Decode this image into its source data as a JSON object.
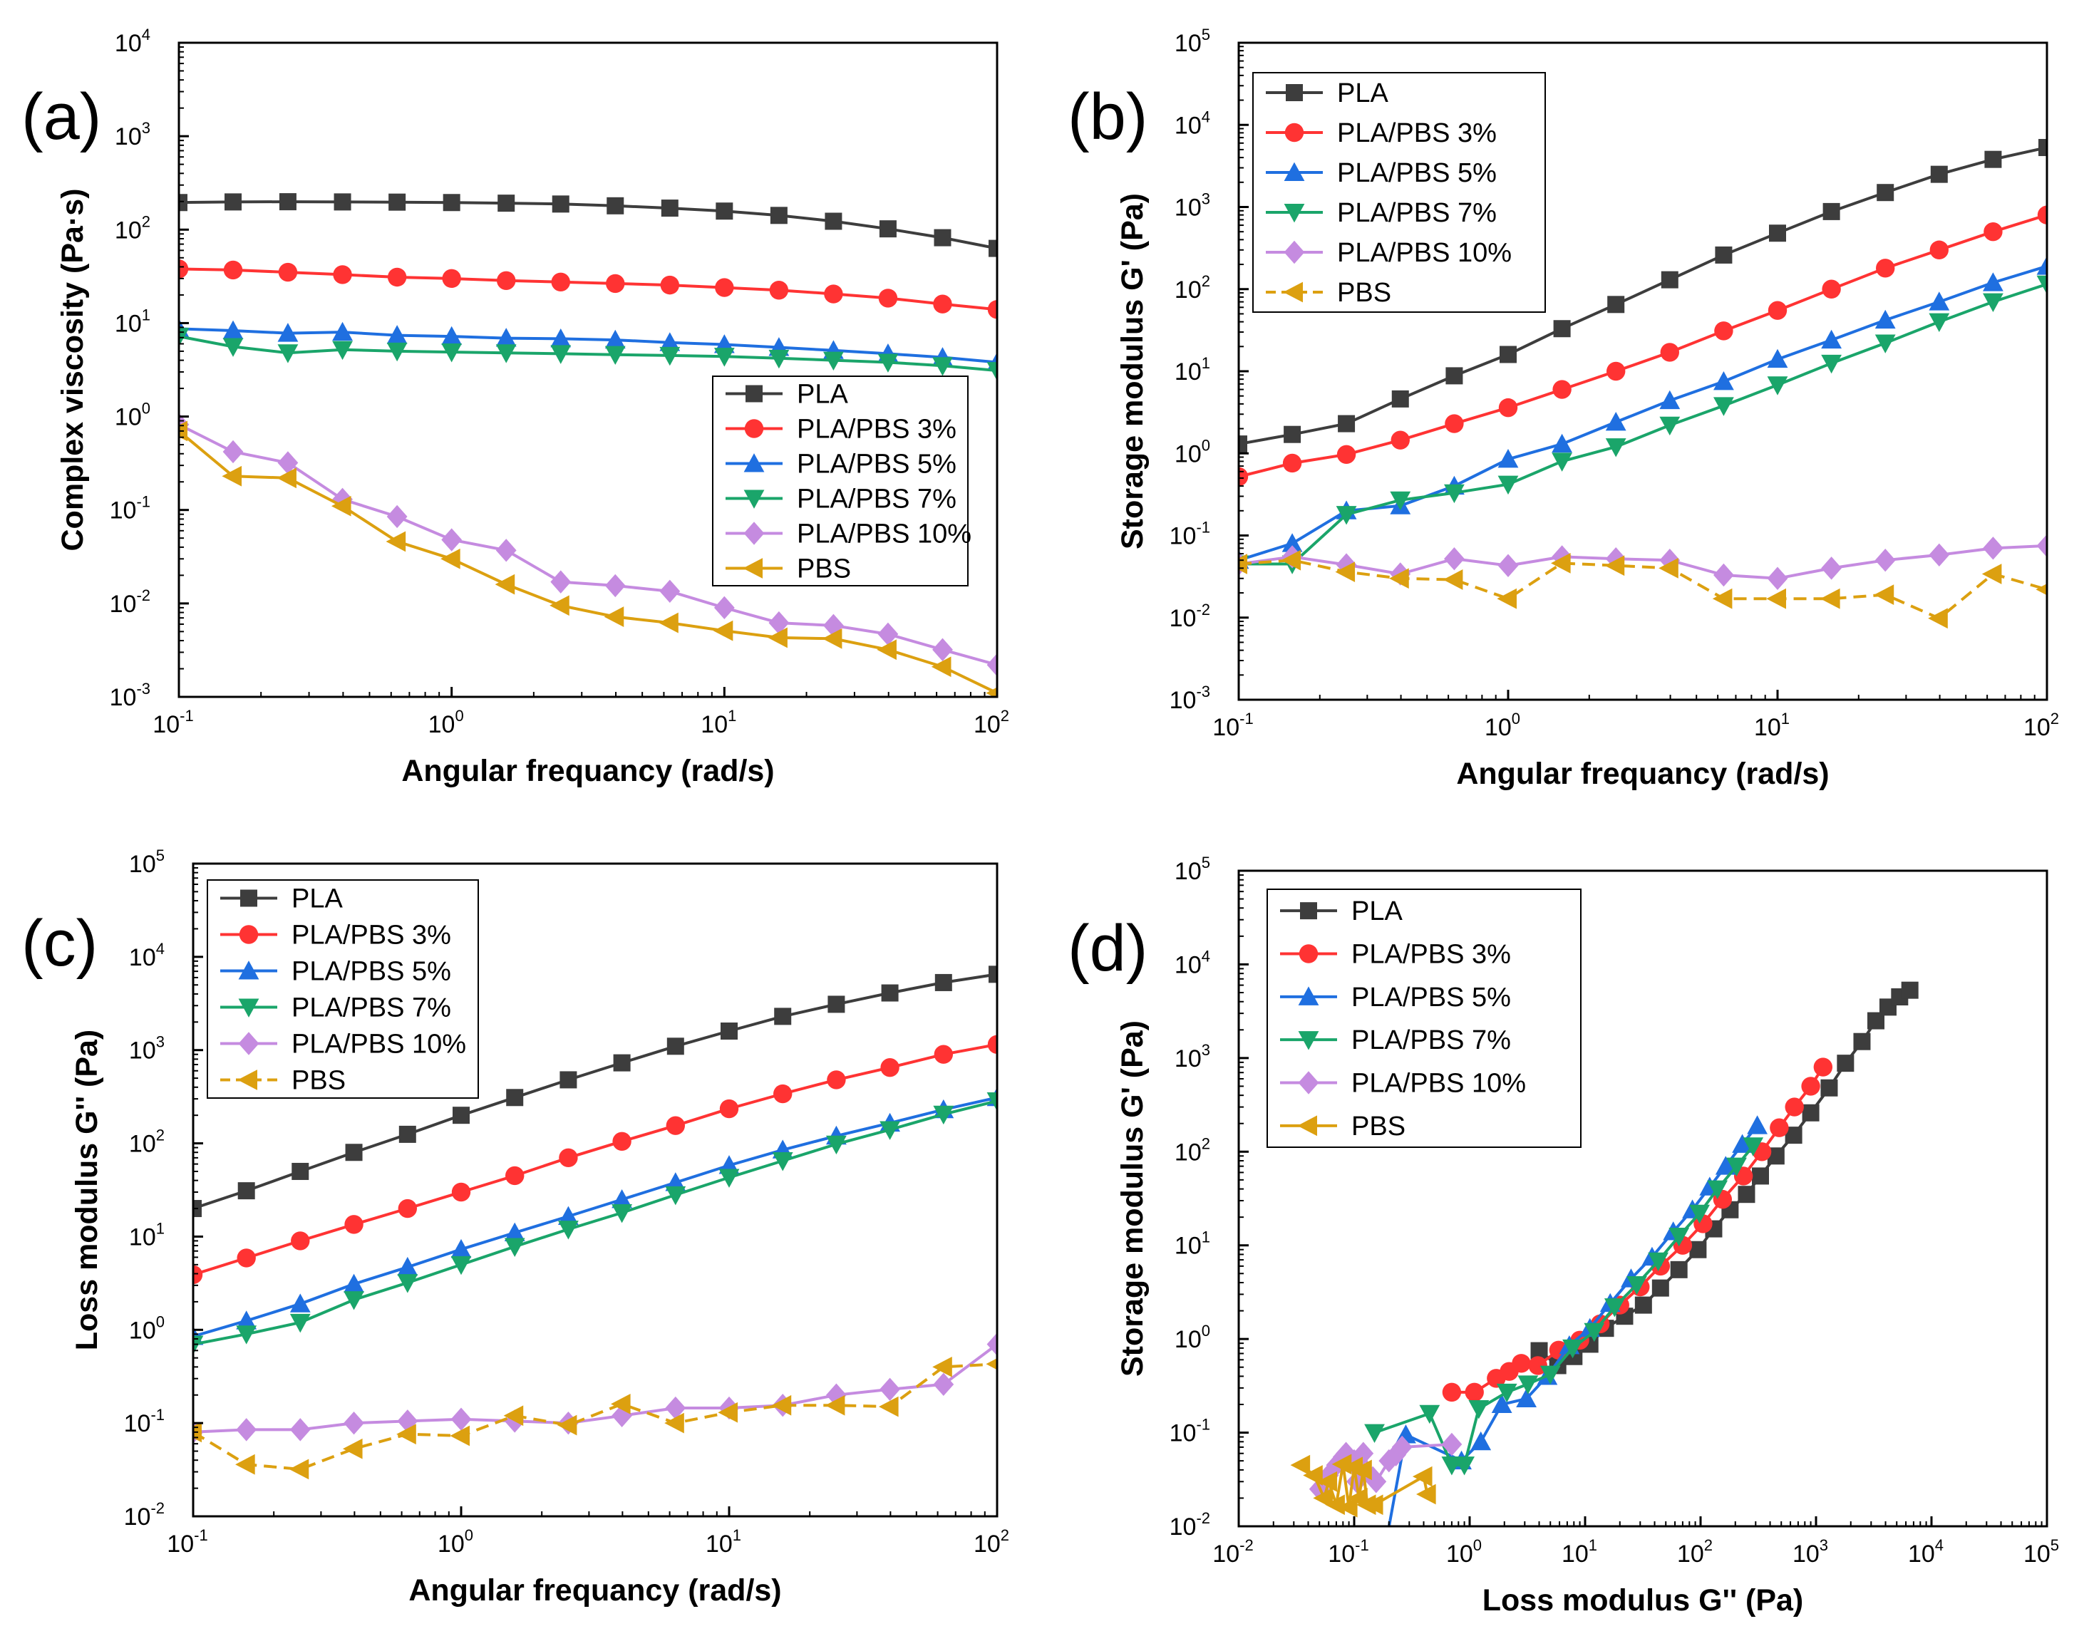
{
  "chart_data": [
    {
      "id": "a",
      "type": "line",
      "panel_label": "(a)",
      "xlabel": "Angular frequancy (rad/s)",
      "ylabel": "Complex viscosity (Pa·s)",
      "xscale": "log",
      "yscale": "log",
      "xlim": [
        0.1,
        100
      ],
      "ylim": [
        0.001,
        10000
      ],
      "xtick_exps": [
        -1,
        0,
        1,
        2
      ],
      "ytick_exps": [
        -3,
        -2,
        -1,
        0,
        1,
        2,
        3,
        4
      ],
      "legend_position": "center-right",
      "x": [
        0.1,
        0.158,
        0.251,
        0.398,
        0.631,
        1,
        1.585,
        2.512,
        3.981,
        6.31,
        10,
        15.85,
        25.12,
        39.81,
        63.1,
        100
      ],
      "series": [
        {
          "name": "PLA",
          "color": "#3d3d3d",
          "marker": "square",
          "dashed": false,
          "values": [
            195,
            198,
            199,
            198,
            197,
            195,
            192,
            188,
            180,
            170,
            158,
            142,
            123,
            102,
            82,
            63
          ]
        },
        {
          "name": "PLA/PBS 3%",
          "color": "#ff3333",
          "marker": "circle",
          "dashed": false,
          "values": [
            38,
            37,
            35,
            33,
            31,
            30,
            28.5,
            27.5,
            26.5,
            25.5,
            24,
            22.5,
            20.5,
            18.5,
            16,
            14
          ]
        },
        {
          "name": "PLA/PBS 5%",
          "color": "#1f6fe0",
          "marker": "triangle-up",
          "dashed": false,
          "values": [
            8.7,
            8.3,
            7.8,
            8.0,
            7.4,
            7.2,
            6.9,
            6.8,
            6.6,
            6.2,
            5.9,
            5.5,
            5.1,
            4.7,
            4.3,
            3.8
          ]
        },
        {
          "name": "PLA/PBS 7%",
          "color": "#1aa56a",
          "marker": "triangle-down",
          "dashed": false,
          "values": [
            7.2,
            5.6,
            4.8,
            5.2,
            5.0,
            4.9,
            4.8,
            4.7,
            4.6,
            4.5,
            4.4,
            4.2,
            4.0,
            3.8,
            3.5,
            3.1
          ]
        },
        {
          "name": "PLA/PBS 10%",
          "color": "#c58be0",
          "marker": "diamond",
          "dashed": false,
          "values": [
            0.82,
            0.42,
            0.32,
            0.13,
            0.085,
            0.048,
            0.037,
            0.017,
            0.0155,
            0.0135,
            0.009,
            0.0062,
            0.0058,
            0.0047,
            0.0032,
            0.0022
          ]
        },
        {
          "name": "PBS",
          "color": "#dca010",
          "marker": "triangle-left",
          "dashed": false,
          "values": [
            0.7,
            0.23,
            0.22,
            0.11,
            0.046,
            0.03,
            0.016,
            0.0095,
            0.0072,
            0.0062,
            0.0051,
            0.0043,
            0.0042,
            0.0032,
            0.0021,
            0.0011
          ]
        }
      ]
    },
    {
      "id": "b",
      "type": "line",
      "panel_label": "(b)",
      "xlabel": "Angular frequancy (rad/s)",
      "ylabel": "Storage modulus G' (Pa)",
      "xscale": "log",
      "yscale": "log",
      "xlim": [
        0.1,
        100
      ],
      "ylim": [
        0.001,
        100000
      ],
      "xtick_exps": [
        -1,
        0,
        1,
        2
      ],
      "ytick_exps": [
        -3,
        -2,
        -1,
        0,
        1,
        2,
        3,
        4,
        5
      ],
      "legend_position": "top-left",
      "x": [
        0.1,
        0.158,
        0.251,
        0.398,
        0.631,
        1,
        1.585,
        2.512,
        3.981,
        6.31,
        10,
        15.85,
        25.12,
        39.81,
        63.1,
        100
      ],
      "series": [
        {
          "name": "PLA",
          "color": "#3d3d3d",
          "marker": "square",
          "dashed": false,
          "values": [
            1.3,
            1.7,
            2.3,
            4.6,
            8.8,
            16,
            33,
            65,
            130,
            260,
            480,
            880,
            1500,
            2500,
            3800,
            5300
          ]
        },
        {
          "name": "PLA/PBS 3%",
          "color": "#ff3333",
          "marker": "circle",
          "dashed": false,
          "values": [
            0.52,
            0.76,
            0.97,
            1.45,
            2.3,
            3.6,
            6.0,
            10,
            17,
            31,
            55,
            100,
            180,
            300,
            500,
            800
          ]
        },
        {
          "name": "PLA/PBS 5%",
          "color": "#1f6fe0",
          "marker": "triangle-up",
          "dashed": false,
          "values": [
            0.05,
            0.08,
            0.2,
            0.23,
            0.4,
            0.85,
            1.3,
            2.4,
            4.4,
            7.5,
            14,
            24,
            42,
            70,
            120,
            190
          ]
        },
        {
          "name": "PLA/PBS 7%",
          "color": "#1aa56a",
          "marker": "triangle-down",
          "dashed": false,
          "values": [
            0.045,
            0.045,
            0.18,
            0.27,
            0.33,
            0.42,
            0.8,
            1.2,
            2.2,
            3.8,
            6.8,
            12.5,
            22,
            40,
            70,
            115
          ]
        },
        {
          "name": "PLA/PBS 10%",
          "color": "#c58be0",
          "marker": "diamond",
          "dashed": false,
          "values": [
            0.045,
            0.055,
            0.044,
            0.034,
            0.052,
            0.043,
            0.055,
            0.052,
            0.05,
            0.033,
            0.03,
            0.04,
            0.05,
            0.058,
            0.07,
            0.075
          ]
        },
        {
          "name": "PBS",
          "color": "#dca010",
          "marker": "triangle-left",
          "dashed": true,
          "values": [
            0.045,
            0.05,
            0.036,
            0.03,
            0.029,
            0.017,
            0.046,
            0.043,
            0.04,
            0.017,
            0.017,
            0.017,
            0.019,
            0.0098,
            0.034,
            0.022
          ]
        }
      ]
    },
    {
      "id": "c",
      "type": "line",
      "panel_label": "(c)",
      "xlabel": "Angular frequancy (rad/s)",
      "ylabel": "Loss modulus G'' (Pa)",
      "xscale": "log",
      "yscale": "log",
      "xlim": [
        0.1,
        100
      ],
      "ylim": [
        0.01,
        100000
      ],
      "xtick_exps": [
        -1,
        0,
        1,
        2
      ],
      "ytick_exps": [
        -2,
        -1,
        0,
        1,
        2,
        3,
        4,
        5
      ],
      "legend_position": "top-left",
      "x": [
        0.1,
        0.158,
        0.251,
        0.398,
        0.631,
        1,
        1.585,
        2.512,
        3.981,
        6.31,
        10,
        15.85,
        25.12,
        39.81,
        63.1,
        100
      ],
      "series": [
        {
          "name": "PLA",
          "color": "#3d3d3d",
          "marker": "square",
          "dashed": false,
          "values": [
            20,
            31,
            50,
            80,
            125,
            200,
            310,
            480,
            730,
            1100,
            1600,
            2300,
            3100,
            4100,
            5300,
            6500
          ]
        },
        {
          "name": "PLA/PBS 3%",
          "color": "#ff3333",
          "marker": "circle",
          "dashed": false,
          "values": [
            3.9,
            5.9,
            9,
            13.5,
            20,
            30,
            45,
            70,
            105,
            155,
            235,
            340,
            480,
            650,
            900,
            1150
          ]
        },
        {
          "name": "PLA/PBS 5%",
          "color": "#1f6fe0",
          "marker": "triangle-up",
          "dashed": false,
          "values": [
            0.85,
            1.25,
            1.9,
            3.1,
            4.7,
            7.3,
            11,
            16.5,
            25,
            38,
            58,
            85,
            120,
            165,
            230,
            310
          ]
        },
        {
          "name": "PLA/PBS 7%",
          "color": "#1aa56a",
          "marker": "triangle-down",
          "dashed": false,
          "values": [
            0.7,
            0.9,
            1.2,
            2.1,
            3.2,
            5.0,
            7.8,
            12,
            18,
            28,
            43,
            65,
            98,
            140,
            205,
            285
          ]
        },
        {
          "name": "PLA/PBS 10%",
          "color": "#c58be0",
          "marker": "diamond",
          "dashed": false,
          "values": [
            0.08,
            0.085,
            0.085,
            0.1,
            0.105,
            0.11,
            0.105,
            0.1,
            0.12,
            0.145,
            0.145,
            0.155,
            0.2,
            0.23,
            0.26,
            0.7
          ]
        },
        {
          "name": "PBS",
          "color": "#dca010",
          "marker": "triangle-left",
          "dashed": true,
          "values": [
            0.08,
            0.036,
            0.032,
            0.053,
            0.076,
            0.073,
            0.12,
            0.095,
            0.16,
            0.1,
            0.13,
            0.155,
            0.155,
            0.15,
            0.4,
            0.43
          ]
        }
      ]
    },
    {
      "id": "d",
      "type": "line",
      "panel_label": "(d)",
      "xlabel": "Loss modulus G'' (Pa)",
      "ylabel": "Storage modulus G' (Pa)",
      "xscale": "log",
      "yscale": "log",
      "xlim": [
        0.01,
        100000
      ],
      "ylim": [
        0.01,
        100000
      ],
      "xtick_exps": [
        -2,
        -1,
        0,
        1,
        2,
        3,
        4,
        5
      ],
      "ytick_exps": [
        -2,
        -1,
        0,
        1,
        2,
        3,
        4,
        5
      ],
      "legend_position": "top-left",
      "series": [
        {
          "name": "PLA",
          "color": "#3d3d3d",
          "marker": "square",
          "dashed": false,
          "x": [
            4,
            5.8,
            8,
            11,
            15,
            22,
            32,
            45,
            65,
            95,
            130,
            180,
            250,
            330,
            450,
            640,
            900,
            1300,
            1800,
            2500,
            3300,
            4200,
            5300,
            6500
          ],
          "values": [
            0.75,
            0.52,
            0.65,
            0.88,
            1.3,
            1.75,
            2.3,
            3.5,
            5.5,
            9,
            15,
            24,
            35,
            55,
            90,
            150,
            260,
            480,
            880,
            1500,
            2500,
            3500,
            4500,
            5300
          ]
        },
        {
          "name": "PLA/PBS 3%",
          "color": "#ff3333",
          "marker": "circle",
          "dashed": false,
          "x": [
            0.7,
            1.1,
            1.7,
            2.2,
            2.8,
            3.9,
            5.9,
            9,
            13.5,
            20,
            30,
            45,
            70,
            105,
            155,
            235,
            340,
            480,
            650,
            900,
            1150
          ],
          "values": [
            0.27,
            0.27,
            0.38,
            0.45,
            0.55,
            0.52,
            0.76,
            0.97,
            1.45,
            2.3,
            3.6,
            6.0,
            10,
            17,
            31,
            55,
            100,
            180,
            300,
            500,
            800
          ]
        },
        {
          "name": "PLA/PBS 5%",
          "color": "#1f6fe0",
          "marker": "triangle-up",
          "dashed": false,
          "x": [
            0.19,
            0.28,
            0.85,
            1.25,
            1.9,
            3.1,
            4.7,
            7.3,
            11,
            16.5,
            25,
            38,
            58,
            85,
            120,
            165,
            230,
            310
          ],
          "values": [
            0.007,
            0.095,
            0.05,
            0.08,
            0.2,
            0.23,
            0.4,
            0.85,
            1.3,
            2.4,
            4.4,
            7.5,
            14,
            24,
            42,
            70,
            120,
            190
          ]
        },
        {
          "name": "PLA/PBS 7%",
          "color": "#1aa56a",
          "marker": "triangle-down",
          "dashed": false,
          "x": [
            0.15,
            0.45,
            0.7,
            0.9,
            1.2,
            2.1,
            3.2,
            5.0,
            7.8,
            12,
            18,
            28,
            43,
            65,
            98,
            140,
            205,
            285
          ],
          "values": [
            0.1,
            0.16,
            0.045,
            0.045,
            0.18,
            0.27,
            0.33,
            0.42,
            0.8,
            1.2,
            2.2,
            3.8,
            6.8,
            12.5,
            22,
            40,
            70,
            115
          ]
        },
        {
          "name": "PLA/PBS 10%",
          "color": "#c58be0",
          "marker": "diamond",
          "dashed": false,
          "x": [
            0.05,
            0.06,
            0.07,
            0.08,
            0.085,
            0.1,
            0.105,
            0.11,
            0.12,
            0.145,
            0.155,
            0.2,
            0.23,
            0.26,
            0.7
          ],
          "values": [
            0.025,
            0.035,
            0.045,
            0.055,
            0.06,
            0.05,
            0.03,
            0.04,
            0.06,
            0.033,
            0.03,
            0.05,
            0.058,
            0.07,
            0.075
          ]
        },
        {
          "name": "PBS",
          "color": "#dca010",
          "marker": "triangle-left",
          "dashed": false,
          "x": [
            0.035,
            0.045,
            0.055,
            0.06,
            0.07,
            0.08,
            0.09,
            0.1,
            0.11,
            0.12,
            0.13,
            0.15,
            0.4,
            0.43
          ],
          "values": [
            0.045,
            0.035,
            0.02,
            0.03,
            0.017,
            0.046,
            0.016,
            0.043,
            0.02,
            0.04,
            0.017,
            0.017,
            0.034,
            0.022
          ]
        }
      ]
    }
  ]
}
